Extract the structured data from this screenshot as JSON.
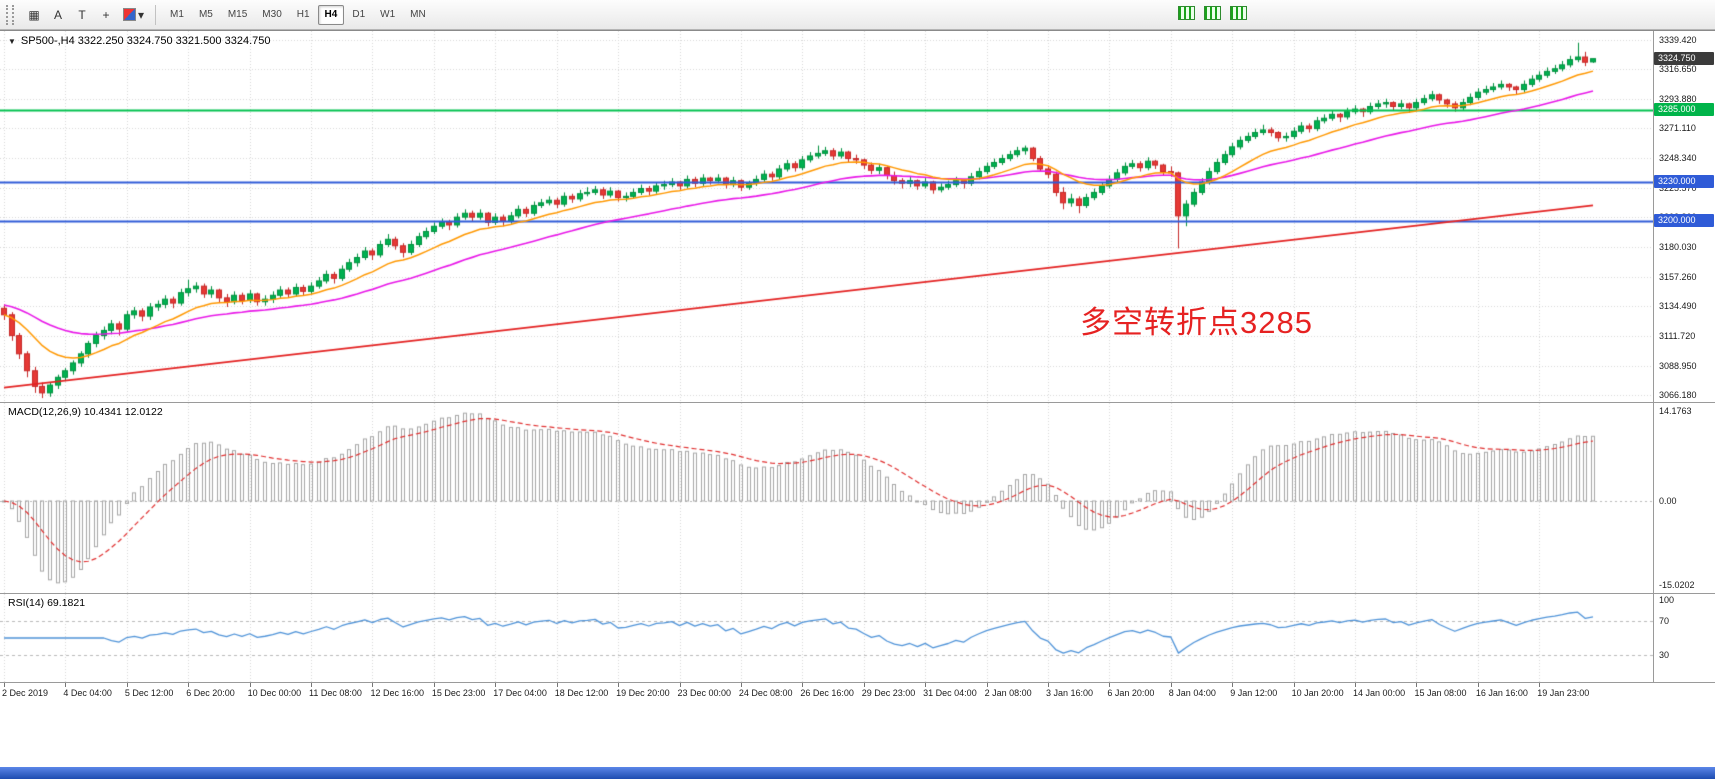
{
  "toolbar": {
    "tool_buttons": [
      {
        "id": "grid",
        "label": "▦"
      },
      {
        "id": "text-label",
        "label": "A"
      },
      {
        "id": "text-box",
        "label": "T"
      },
      {
        "id": "crosshair",
        "label": "+"
      },
      {
        "id": "palette",
        "label": "▾"
      }
    ],
    "timeframes": [
      "M1",
      "M5",
      "M15",
      "M30",
      "H1",
      "H4",
      "D1",
      "W1",
      "MN"
    ],
    "active_timeframe": "H4"
  },
  "chart": {
    "symbol_line": "SP500-,H4 3322.250 3324.750 3321.500 3324.750",
    "annotation": {
      "text": "多空转折点3285",
      "color": "#e62222"
    },
    "price_scale": {
      "max": 3346,
      "min": 3061
    },
    "price_axis_labels": [
      "3339.420",
      "3316.650",
      "3293.880",
      "3271.110",
      "3248.340",
      "3225.570",
      "3202.800",
      "3180.030",
      "3157.260",
      "3134.490",
      "3111.720",
      "3088.950",
      "3066.180"
    ],
    "price_tags": [
      {
        "id": "current",
        "text": "3324.750",
        "price": 3324.75,
        "color": "#3b3b3b"
      },
      {
        "id": "level-3285",
        "text": "3285.000",
        "price": 3285.0,
        "color": "#00b44a"
      },
      {
        "id": "level-3230",
        "text": "3230.000",
        "price": 3230.0,
        "color": "#2f5bd7"
      },
      {
        "id": "level-3200",
        "text": "3200.000",
        "price": 3200.0,
        "color": "#2f5bd7"
      }
    ],
    "hlines": [
      {
        "price": 3285.0,
        "color": "#00c24e",
        "width": 1.8
      },
      {
        "price": 3230.0,
        "color": "#2f5bd7",
        "width": 1.8
      },
      {
        "price": 3200.0,
        "color": "#2f5bd7",
        "width": 1.8
      }
    ],
    "colors": {
      "up_fill": "#00b050",
      "up_stroke": "#00913f",
      "down_fill": "#e53935",
      "down_stroke": "#c62828",
      "ma_fast": "#ff9800",
      "ma_mid": "#e818e8",
      "ma_slow": "#e32222",
      "grid": "#d6d6d6"
    },
    "ma": {
      "fast_period": 13,
      "mid_period": 34,
      "mid_seed": 3136,
      "slow_start": 3072,
      "slow_end": 3212
    },
    "candles": [
      [
        3133,
        3136,
        3124,
        3128
      ],
      [
        3128,
        3130,
        3108,
        3112
      ],
      [
        3112,
        3114,
        3094,
        3098
      ],
      [
        3098,
        3100,
        3080,
        3085
      ],
      [
        3085,
        3088,
        3068,
        3073
      ],
      [
        3073,
        3076,
        3064,
        3068
      ],
      [
        3068,
        3076,
        3065,
        3074
      ],
      [
        3074,
        3082,
        3071,
        3080
      ],
      [
        3080,
        3087,
        3077,
        3085
      ],
      [
        3085,
        3093,
        3082,
        3091
      ],
      [
        3091,
        3100,
        3088,
        3098
      ],
      [
        3098,
        3108,
        3095,
        3106
      ],
      [
        3106,
        3115,
        3103,
        3112
      ],
      [
        3112,
        3119,
        3109,
        3116
      ],
      [
        3116,
        3124,
        3113,
        3121
      ],
      [
        3121,
        3123,
        3112,
        3117
      ],
      [
        3117,
        3131,
        3115,
        3128
      ],
      [
        3128,
        3134,
        3125,
        3131
      ],
      [
        3131,
        3133,
        3123,
        3127
      ],
      [
        3127,
        3137,
        3124,
        3134
      ],
      [
        3134,
        3139,
        3131,
        3136
      ],
      [
        3136,
        3143,
        3133,
        3140
      ],
      [
        3140,
        3142,
        3133,
        3137
      ],
      [
        3137,
        3148,
        3135,
        3145
      ],
      [
        3145,
        3155,
        3142,
        3148
      ],
      [
        3148,
        3153,
        3145,
        3150
      ],
      [
        3150,
        3152,
        3141,
        3144
      ],
      [
        3144,
        3150,
        3141,
        3147
      ],
      [
        3147,
        3148,
        3137,
        3141
      ],
      [
        3141,
        3144,
        3134,
        3138
      ],
      [
        3138,
        3146,
        3136,
        3143
      ],
      [
        3143,
        3145,
        3136,
        3139
      ],
      [
        3139,
        3147,
        3137,
        3144
      ],
      [
        3144,
        3145,
        3135,
        3138
      ],
      [
        3138,
        3143,
        3135,
        3140
      ],
      [
        3140,
        3146,
        3137,
        3143
      ],
      [
        3143,
        3150,
        3141,
        3147
      ],
      [
        3147,
        3149,
        3141,
        3144
      ],
      [
        3144,
        3152,
        3142,
        3149
      ],
      [
        3149,
        3151,
        3143,
        3146
      ],
      [
        3146,
        3153,
        3144,
        3150
      ],
      [
        3150,
        3157,
        3148,
        3154
      ],
      [
        3154,
        3162,
        3152,
        3159
      ],
      [
        3159,
        3161,
        3152,
        3156
      ],
      [
        3156,
        3166,
        3154,
        3163
      ],
      [
        3163,
        3171,
        3161,
        3168
      ],
      [
        3168,
        3175,
        3165,
        3172
      ],
      [
        3172,
        3180,
        3170,
        3177
      ],
      [
        3177,
        3179,
        3170,
        3174
      ],
      [
        3174,
        3185,
        3172,
        3182
      ],
      [
        3182,
        3190,
        3180,
        3186
      ],
      [
        3186,
        3188,
        3178,
        3181
      ],
      [
        3181,
        3183,
        3172,
        3176
      ],
      [
        3176,
        3185,
        3174,
        3182
      ],
      [
        3182,
        3191,
        3180,
        3188
      ],
      [
        3188,
        3195,
        3186,
        3192
      ],
      [
        3192,
        3199,
        3190,
        3196
      ],
      [
        3196,
        3202,
        3194,
        3199
      ],
      [
        3199,
        3201,
        3193,
        3197
      ],
      [
        3197,
        3206,
        3195,
        3203
      ],
      [
        3203,
        3209,
        3201,
        3206
      ],
      [
        3206,
        3208,
        3200,
        3203
      ],
      [
        3203,
        3209,
        3201,
        3206
      ],
      [
        3206,
        3207,
        3196,
        3199
      ],
      [
        3199,
        3206,
        3197,
        3203
      ],
      [
        3203,
        3205,
        3196,
        3200
      ],
      [
        3200,
        3207,
        3198,
        3204
      ],
      [
        3204,
        3212,
        3202,
        3209
      ],
      [
        3209,
        3211,
        3203,
        3206
      ],
      [
        3206,
        3215,
        3204,
        3212
      ],
      [
        3212,
        3217,
        3210,
        3214
      ],
      [
        3214,
        3219,
        3212,
        3216
      ],
      [
        3216,
        3218,
        3210,
        3213
      ],
      [
        3213,
        3222,
        3211,
        3219
      ],
      [
        3219,
        3221,
        3214,
        3217
      ],
      [
        3217,
        3224,
        3215,
        3221
      ],
      [
        3221,
        3226,
        3219,
        3222
      ],
      [
        3222,
        3227,
        3220,
        3224
      ],
      [
        3224,
        3226,
        3217,
        3220
      ],
      [
        3220,
        3226,
        3218,
        3223
      ],
      [
        3223,
        3224,
        3215,
        3218
      ],
      [
        3218,
        3222,
        3215,
        3219
      ],
      [
        3219,
        3225,
        3217,
        3222
      ],
      [
        3222,
        3228,
        3220,
        3225
      ],
      [
        3225,
        3227,
        3220,
        3223
      ],
      [
        3223,
        3230,
        3221,
        3227
      ],
      [
        3227,
        3231,
        3224,
        3228
      ],
      [
        3228,
        3233,
        3226,
        3230
      ],
      [
        3230,
        3231,
        3224,
        3227
      ],
      [
        3227,
        3235,
        3225,
        3232
      ],
      [
        3232,
        3234,
        3226,
        3229
      ],
      [
        3229,
        3236,
        3227,
        3233
      ],
      [
        3233,
        3234,
        3228,
        3231
      ],
      [
        3231,
        3236,
        3229,
        3233
      ],
      [
        3233,
        3234,
        3225,
        3228
      ],
      [
        3228,
        3234,
        3226,
        3231
      ],
      [
        3231,
        3232,
        3223,
        3226
      ],
      [
        3226,
        3231,
        3224,
        3229
      ],
      [
        3229,
        3235,
        3227,
        3232
      ],
      [
        3232,
        3239,
        3230,
        3236
      ],
      [
        3236,
        3238,
        3231,
        3234
      ],
      [
        3234,
        3243,
        3232,
        3240
      ],
      [
        3240,
        3247,
        3238,
        3244
      ],
      [
        3244,
        3246,
        3238,
        3241
      ],
      [
        3241,
        3250,
        3239,
        3247
      ],
      [
        3247,
        3253,
        3245,
        3250
      ],
      [
        3250,
        3258,
        3248,
        3252
      ],
      [
        3252,
        3257,
        3250,
        3254
      ],
      [
        3254,
        3256,
        3247,
        3250
      ],
      [
        3250,
        3256,
        3248,
        3253
      ],
      [
        3253,
        3254,
        3245,
        3248
      ],
      [
        3248,
        3251,
        3244,
        3247
      ],
      [
        3247,
        3248,
        3240,
        3243
      ],
      [
        3243,
        3245,
        3236,
        3239
      ],
      [
        3239,
        3244,
        3236,
        3241
      ],
      [
        3241,
        3242,
        3232,
        3235
      ],
      [
        3235,
        3238,
        3228,
        3231
      ],
      [
        3231,
        3233,
        3225,
        3229
      ],
      [
        3229,
        3234,
        3226,
        3231
      ],
      [
        3231,
        3232,
        3224,
        3227
      ],
      [
        3227,
        3233,
        3225,
        3230
      ],
      [
        3230,
        3231,
        3221,
        3224
      ],
      [
        3224,
        3229,
        3222,
        3226
      ],
      [
        3226,
        3231,
        3224,
        3228
      ],
      [
        3228,
        3234,
        3226,
        3231
      ],
      [
        3231,
        3232,
        3225,
        3229
      ],
      [
        3229,
        3237,
        3227,
        3234
      ],
      [
        3234,
        3241,
        3232,
        3238
      ],
      [
        3238,
        3245,
        3236,
        3242
      ],
      [
        3242,
        3248,
        3240,
        3245
      ],
      [
        3245,
        3251,
        3243,
        3248
      ],
      [
        3248,
        3254,
        3246,
        3251
      ],
      [
        3251,
        3257,
        3249,
        3254
      ],
      [
        3254,
        3258,
        3251,
        3256
      ],
      [
        3256,
        3257,
        3246,
        3248
      ],
      [
        3248,
        3250,
        3238,
        3240
      ],
      [
        3240,
        3243,
        3233,
        3236
      ],
      [
        3236,
        3238,
        3219,
        3222
      ],
      [
        3222,
        3226,
        3209,
        3214
      ],
      [
        3214,
        3221,
        3211,
        3217
      ],
      [
        3217,
        3219,
        3206,
        3212
      ],
      [
        3212,
        3221,
        3210,
        3218
      ],
      [
        3218,
        3225,
        3216,
        3222
      ],
      [
        3222,
        3230,
        3220,
        3227
      ],
      [
        3227,
        3235,
        3225,
        3232
      ],
      [
        3232,
        3240,
        3230,
        3237
      ],
      [
        3237,
        3245,
        3235,
        3242
      ],
      [
        3242,
        3247,
        3240,
        3244
      ],
      [
        3244,
        3246,
        3238,
        3241
      ],
      [
        3241,
        3249,
        3239,
        3246
      ],
      [
        3246,
        3247,
        3240,
        3243
      ],
      [
        3243,
        3244,
        3235,
        3238
      ],
      [
        3238,
        3242,
        3234,
        3237
      ],
      [
        3237,
        3238,
        3179,
        3204
      ],
      [
        3204,
        3216,
        3196,
        3213
      ],
      [
        3213,
        3225,
        3211,
        3222
      ],
      [
        3222,
        3233,
        3220,
        3230
      ],
      [
        3230,
        3241,
        3228,
        3238
      ],
      [
        3238,
        3248,
        3236,
        3245
      ],
      [
        3245,
        3254,
        3243,
        3251
      ],
      [
        3251,
        3260,
        3249,
        3257
      ],
      [
        3257,
        3265,
        3255,
        3262
      ],
      [
        3262,
        3268,
        3260,
        3265
      ],
      [
        3265,
        3271,
        3263,
        3268
      ],
      [
        3268,
        3274,
        3266,
        3270
      ],
      [
        3270,
        3272,
        3265,
        3268
      ],
      [
        3268,
        3269,
        3261,
        3264
      ],
      [
        3264,
        3268,
        3261,
        3265
      ],
      [
        3265,
        3272,
        3263,
        3269
      ],
      [
        3269,
        3276,
        3267,
        3273
      ],
      [
        3273,
        3275,
        3268,
        3271
      ],
      [
        3271,
        3280,
        3269,
        3277
      ],
      [
        3277,
        3282,
        3275,
        3279
      ],
      [
        3279,
        3285,
        3277,
        3282
      ],
      [
        3282,
        3283,
        3276,
        3280
      ],
      [
        3280,
        3287,
        3278,
        3284
      ],
      [
        3284,
        3289,
        3282,
        3286
      ],
      [
        3286,
        3287,
        3280,
        3284
      ],
      [
        3284,
        3291,
        3282,
        3288
      ],
      [
        3288,
        3293,
        3286,
        3290
      ],
      [
        3290,
        3294,
        3287,
        3291
      ],
      [
        3291,
        3292,
        3285,
        3288
      ],
      [
        3288,
        3293,
        3286,
        3290
      ],
      [
        3290,
        3291,
        3283,
        3287
      ],
      [
        3287,
        3294,
        3285,
        3291
      ],
      [
        3291,
        3297,
        3289,
        3294
      ],
      [
        3294,
        3300,
        3292,
        3297
      ],
      [
        3297,
        3298,
        3290,
        3293
      ],
      [
        3293,
        3294,
        3287,
        3290
      ],
      [
        3290,
        3292,
        3284,
        3287
      ],
      [
        3287,
        3294,
        3285,
        3291
      ],
      [
        3291,
        3298,
        3289,
        3295
      ],
      [
        3295,
        3302,
        3293,
        3299
      ],
      [
        3299,
        3304,
        3297,
        3301
      ],
      [
        3301,
        3306,
        3299,
        3303
      ],
      [
        3303,
        3308,
        3301,
        3305
      ],
      [
        3305,
        3306,
        3300,
        3303
      ],
      [
        3303,
        3304,
        3297,
        3301
      ],
      [
        3301,
        3308,
        3299,
        3305
      ],
      [
        3305,
        3312,
        3303,
        3309
      ],
      [
        3309,
        3315,
        3307,
        3312
      ],
      [
        3312,
        3318,
        3310,
        3315
      ],
      [
        3315,
        3320,
        3313,
        3317
      ],
      [
        3317,
        3323,
        3315,
        3320
      ],
      [
        3320,
        3327,
        3318,
        3324
      ],
      [
        3324,
        3337,
        3322,
        3326
      ],
      [
        3326,
        3330,
        3319,
        3322
      ],
      [
        3322.25,
        3324.75,
        3321.5,
        3324.75
      ]
    ]
  },
  "macd": {
    "label": "MACD(12,26,9) 10.4341 12.0122",
    "fast": 12,
    "slow": 26,
    "signal": 9,
    "axis": {
      "max": "14.1763",
      "zero": "0.00",
      "min": "-15.0202"
    },
    "hist_color": "#a6a6a6",
    "signal_color": "#e03030"
  },
  "rsi": {
    "label": "RSI(14) 69.1821",
    "period": 14,
    "axis_labels": [
      "100",
      "70",
      "30"
    ],
    "levels": [
      70,
      30
    ],
    "line_color": "#4f93d8"
  },
  "time_axis": {
    "labels": [
      "2 Dec 2019",
      "4 Dec 04:00",
      "5 Dec 12:00",
      "6 Dec 20:00",
      "10 Dec 00:00",
      "11 Dec 08:00",
      "12 Dec 16:00",
      "15 Dec 23:00",
      "17 Dec 04:00",
      "18 Dec 12:00",
      "19 Dec 20:00",
      "23 Dec 00:00",
      "24 Dec 08:00",
      "26 Dec 16:00",
      "29 Dec 23:00",
      "31 Dec 04:00",
      "2 Jan 08:00",
      "3 Jan 16:00",
      "6 Jan 20:00",
      "8 Jan 04:00",
      "9 Jan 12:00",
      "10 Jan 20:00",
      "14 Jan 00:00",
      "15 Jan 08:00",
      "16 Jan 16:00",
      "19 Jan 23:00"
    ]
  }
}
